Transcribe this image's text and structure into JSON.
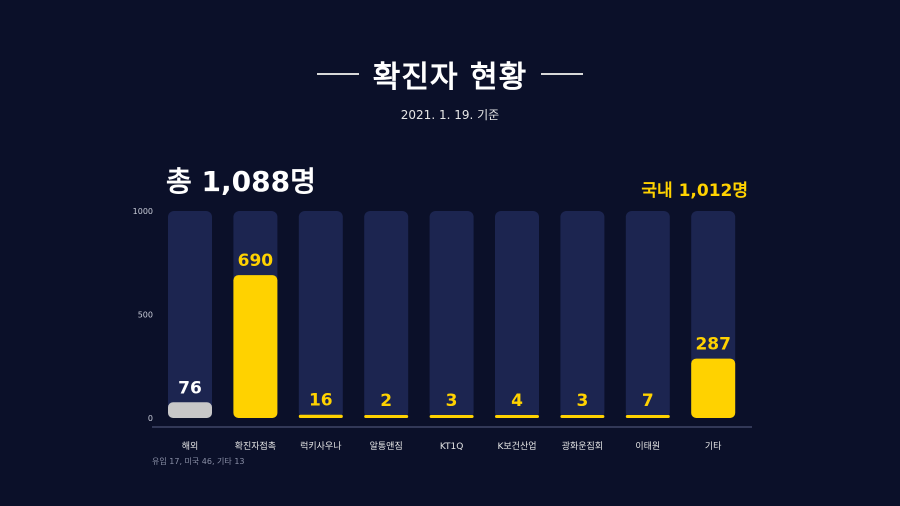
{
  "header": {
    "title": "확진자 현황",
    "subtitle": "2021. 1. 19. 기준"
  },
  "summary": {
    "total": "총 1,088명",
    "domestic": "국내 1,012명"
  },
  "footnote": "유입 17, 미국 46, 기타 13",
  "colors": {
    "background": "#0b1029",
    "track": "#1c2550",
    "highlight": "#ffd200",
    "overseas": "#c7c7c7",
    "axis": "#5a6185"
  },
  "chart_data": {
    "type": "bar",
    "title": "확진자 현황",
    "categories": [
      "해외",
      "확진자접촉",
      "럭키사우나",
      "알통앤짐",
      "KT1Q",
      "K보건산업",
      "광화운집회",
      "이태원",
      "기타"
    ],
    "values": [
      76,
      690,
      16,
      2,
      3,
      4,
      3,
      7,
      287
    ],
    "data_labels": [
      "76",
      "690",
      "16",
      "2",
      "3",
      "4",
      "3",
      "7",
      "287"
    ],
    "bar_colors": [
      "#c7c7c7",
      "#ffd200",
      "#ffd200",
      "#ffd200",
      "#ffd200",
      "#ffd200",
      "#ffd200",
      "#ffd200",
      "#ffd200"
    ],
    "label_colors": [
      "#ffffff",
      "#ffd200",
      "#ffd200",
      "#ffd200",
      "#ffd200",
      "#ffd200",
      "#ffd200",
      "#ffd200",
      "#ffd200"
    ],
    "y_ticks": [
      0,
      500,
      1000
    ],
    "ylim": [
      0,
      1000
    ],
    "grid": false,
    "legend": "none"
  }
}
